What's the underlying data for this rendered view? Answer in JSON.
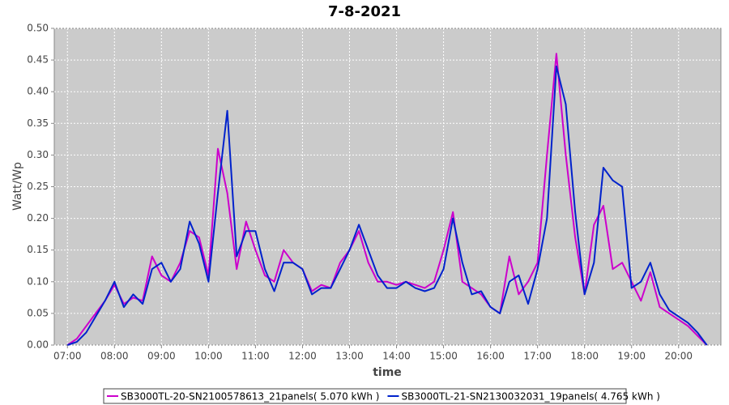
{
  "chart_data": {
    "type": "line",
    "title": "7-8-2021",
    "x_label": "time",
    "y_label": "Watt/Wp",
    "x": [
      7.0,
      7.2,
      7.4,
      7.6,
      7.8,
      8.0,
      8.2,
      8.4,
      8.6,
      8.8,
      9.0,
      9.2,
      9.4,
      9.6,
      9.8,
      10.0,
      10.2,
      10.4,
      10.6,
      10.8,
      11.0,
      11.2,
      11.4,
      11.6,
      11.8,
      12.0,
      12.2,
      12.4,
      12.6,
      12.8,
      13.0,
      13.2,
      13.4,
      13.6,
      13.8,
      14.0,
      14.2,
      14.4,
      14.6,
      14.8,
      15.0,
      15.2,
      15.4,
      15.6,
      15.8,
      16.0,
      16.2,
      16.4,
      16.6,
      16.8,
      17.0,
      17.2,
      17.4,
      17.6,
      17.8,
      18.0,
      18.2,
      18.4,
      18.6,
      18.8,
      19.0,
      19.2,
      19.4,
      19.6,
      19.8,
      20.0,
      20.2,
      20.4,
      20.6
    ],
    "series": [
      {
        "name": "SB3000TL-20-SN2100578613_21panels( 5.070 kWh )",
        "color": "#cc00cc",
        "values": [
          0,
          0.01,
          0.03,
          0.05,
          0.07,
          0.095,
          0.065,
          0.075,
          0.07,
          0.14,
          0.11,
          0.1,
          0.13,
          0.18,
          0.17,
          0.11,
          0.31,
          0.24,
          0.12,
          0.195,
          0.15,
          0.11,
          0.1,
          0.15,
          0.13,
          0.12,
          0.085,
          0.095,
          0.09,
          0.13,
          0.15,
          0.18,
          0.13,
          0.1,
          0.1,
          0.095,
          0.1,
          0.095,
          0.09,
          0.1,
          0.15,
          0.21,
          0.1,
          0.09,
          0.08,
          0.06,
          0.05,
          0.14,
          0.08,
          0.1,
          0.13,
          0.3,
          0.46,
          0.3,
          0.17,
          0.08,
          0.19,
          0.22,
          0.12,
          0.13,
          0.1,
          0.07,
          0.115,
          0.06,
          0.05,
          0.04,
          0.03,
          0.015,
          0
        ]
      },
      {
        "name": "SB3000TL-21-SN2130032031_19panels( 4.765 kWh )",
        "color": "#0022cc",
        "values": [
          0,
          0.005,
          0.02,
          0.045,
          0.07,
          0.1,
          0.06,
          0.08,
          0.065,
          0.12,
          0.13,
          0.1,
          0.12,
          0.195,
          0.16,
          0.1,
          0.24,
          0.37,
          0.14,
          0.18,
          0.18,
          0.12,
          0.085,
          0.13,
          0.13,
          0.12,
          0.08,
          0.09,
          0.09,
          0.12,
          0.15,
          0.19,
          0.15,
          0.11,
          0.09,
          0.09,
          0.1,
          0.09,
          0.085,
          0.09,
          0.12,
          0.2,
          0.13,
          0.08,
          0.085,
          0.06,
          0.05,
          0.1,
          0.11,
          0.065,
          0.12,
          0.2,
          0.44,
          0.38,
          0.21,
          0.08,
          0.13,
          0.28,
          0.26,
          0.25,
          0.09,
          0.1,
          0.13,
          0.08,
          0.055,
          0.045,
          0.035,
          0.02,
          0
        ]
      }
    ],
    "xlim": [
      6.72,
      20.9
    ],
    "xticks": [
      {
        "value": 7,
        "label": "07:00"
      },
      {
        "value": 8,
        "label": "08:00"
      },
      {
        "value": 9,
        "label": "09:00"
      },
      {
        "value": 10,
        "label": "10:00"
      },
      {
        "value": 11,
        "label": "11:00"
      },
      {
        "value": 12,
        "label": "12:00"
      },
      {
        "value": 13,
        "label": "13:00"
      },
      {
        "value": 14,
        "label": "14:00"
      },
      {
        "value": 15,
        "label": "15:00"
      },
      {
        "value": 16,
        "label": "16:00"
      },
      {
        "value": 17,
        "label": "17:00"
      },
      {
        "value": 18,
        "label": "18:00"
      },
      {
        "value": 19,
        "label": "19:00"
      },
      {
        "value": 20,
        "label": "20:00"
      }
    ],
    "ylim": [
      0,
      0.5
    ],
    "yticks": [
      {
        "value": 0,
        "label": "0.00"
      },
      0.05,
      {
        "value": 0.1,
        "label": "0.10"
      },
      0.15,
      {
        "value": 0.2,
        "label": "0.20"
      },
      0.25,
      {
        "value": 0.3,
        "label": "0.30"
      },
      0.35,
      {
        "value": 0.4,
        "label": "0.40"
      },
      0.45,
      {
        "value": 0.5,
        "label": "0.50"
      }
    ],
    "grid": true
  }
}
